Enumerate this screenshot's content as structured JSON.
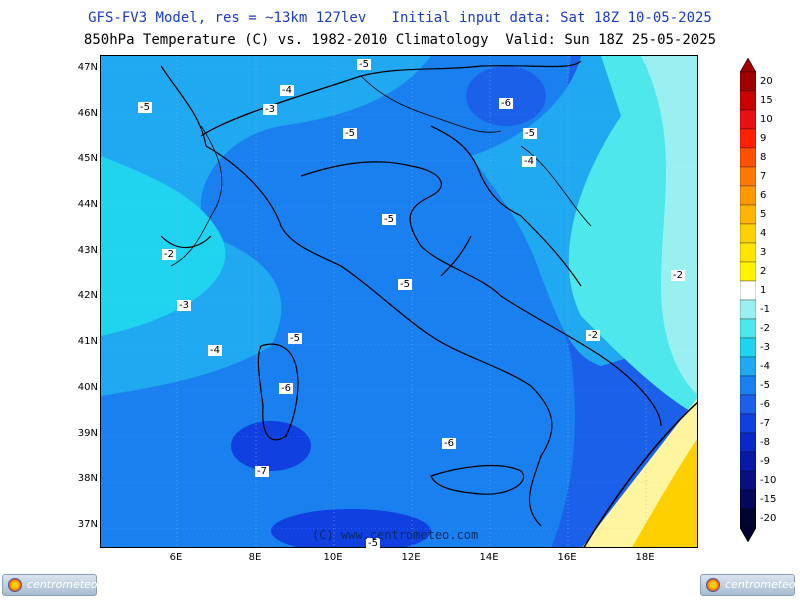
{
  "header": {
    "title": "GFS-FV3 Model, res = ~13km 127lev   Initial input data: Sat 18Z 10-05-2025",
    "subtitle": "850hPa Temperature (C) vs. 1982-2010 Climatology  Valid: Sun 18Z 25-05-2025"
  },
  "map": {
    "lat_labels": [
      "47N",
      "46N",
      "45N",
      "44N",
      "43N",
      "42N",
      "41N",
      "40N",
      "39N",
      "38N",
      "37N"
    ],
    "lon_labels": [
      "6E",
      "8E",
      "10E",
      "12E",
      "14E",
      "16E",
      "18E"
    ],
    "contour_labels": [
      "-5",
      "-4",
      "-5",
      "-6",
      "-5",
      "-5",
      "-4",
      "-3",
      "-5",
      "-2",
      "-5",
      "-3",
      "-4",
      "-5",
      "-2",
      "-2",
      "-6",
      "-6",
      "-7",
      "-5"
    ],
    "copyright": "(C) www.centrometeo.com"
  },
  "legend": {
    "levels": [
      "20",
      "15",
      "10",
      "9",
      "8",
      "7",
      "6",
      "5",
      "4",
      "3",
      "2",
      "1",
      "-1",
      "-2",
      "-3",
      "-4",
      "-5",
      "-6",
      "-7",
      "-8",
      "-9",
      "-10",
      "-15",
      "-20"
    ],
    "colors": [
      "#a00000",
      "#c80000",
      "#e81010",
      "#ff2000",
      "#ff5000",
      "#ff7800",
      "#ff9800",
      "#ffb400",
      "#ffd000",
      "#ffe400",
      "#fff400",
      "#ffffff",
      "#9af0f0",
      "#4ee8ec",
      "#20d4f0",
      "#20a8f0",
      "#1a80f0",
      "#1a60e8",
      "#1040e0",
      "#0a28c8",
      "#0818a8",
      "#061080",
      "#040858",
      "#020430"
    ]
  },
  "logos": {
    "left": "centrometeo",
    "right": "centrometeo"
  }
}
